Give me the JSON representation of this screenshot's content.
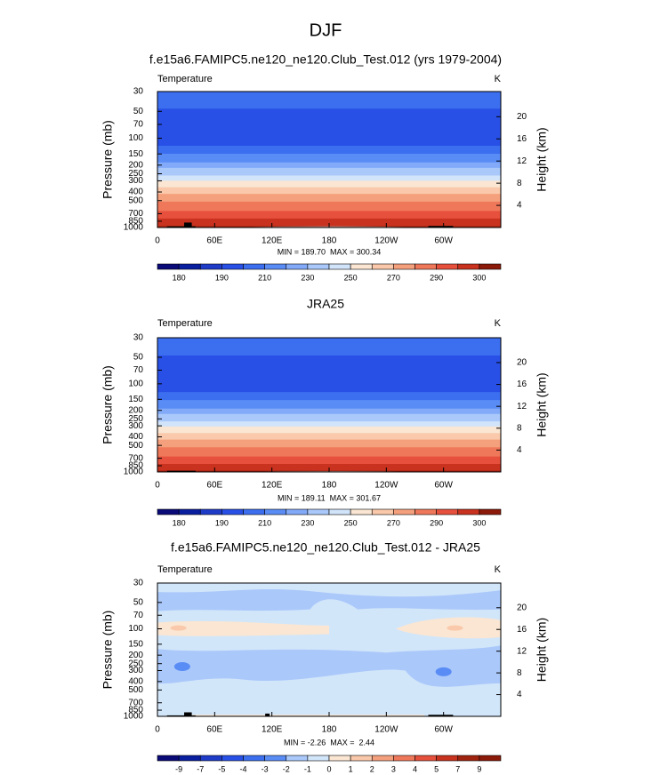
{
  "figure_title": "DJF",
  "chart_data": [
    {
      "type": "contour",
      "title": "f.e15a6.FAMIPC5.ne120_ne120.Club_Test.012 (yrs 1979-2004)",
      "left_label": "Temperature",
      "right_label": "K",
      "y_label": "Pressure (mb)",
      "y2_label": "Height (km)",
      "xlim": [
        0,
        360
      ],
      "xticks": [
        0,
        {
          "value": 60,
          "label": "60E"
        },
        {
          "value": 120,
          "label": "120E"
        },
        180,
        {
          "value": 240,
          "label": "120W"
        },
        {
          "value": 300,
          "label": "60W"
        }
      ],
      "ylim": [
        1000,
        30
      ],
      "log_y": true,
      "yticks": [
        30,
        50,
        70,
        100,
        150,
        200,
        250,
        300,
        400,
        500,
        700,
        850,
        1000
      ],
      "y2ticks": [
        4,
        8,
        12,
        16,
        20
      ],
      "stats": "MIN = 189.70  MAX = 300.34",
      "colorbar": {
        "labels": [
          180,
          190,
          210,
          230,
          250,
          270,
          290,
          300
        ],
        "colors": [
          "#0a0a78",
          "#0a1ea0",
          "#1e3cc8",
          "#2850e6",
          "#3c6ef0",
          "#5a8cf5",
          "#82aaf8",
          "#aac8fa",
          "#d2e4fa",
          "#fae6d2",
          "#fac8aa",
          "#f5a07d",
          "#f0785a",
          "#e6503c",
          "#c8321e",
          "#8c1a0a"
        ]
      }
    },
    {
      "type": "contour",
      "title": "JRA25",
      "left_label": "Temperature",
      "right_label": "K",
      "y_label": "Pressure (mb)",
      "y2_label": "Height (km)",
      "xlim": [
        0,
        360
      ],
      "xticks": [
        0,
        {
          "value": 60,
          "label": "60E"
        },
        {
          "value": 120,
          "label": "120E"
        },
        180,
        {
          "value": 240,
          "label": "120W"
        },
        {
          "value": 300,
          "label": "60W"
        }
      ],
      "ylim": [
        1000,
        30
      ],
      "log_y": true,
      "yticks": [
        30,
        50,
        70,
        100,
        150,
        200,
        250,
        300,
        400,
        500,
        700,
        850,
        1000
      ],
      "y2ticks": [
        4,
        8,
        12,
        16,
        20
      ],
      "stats": "MIN = 189.11  MAX = 301.67",
      "colorbar": {
        "labels": [
          180,
          190,
          210,
          230,
          250,
          270,
          290,
          300
        ],
        "colors": [
          "#0a0a78",
          "#0a1ea0",
          "#1e3cc8",
          "#2850e6",
          "#3c6ef0",
          "#5a8cf5",
          "#82aaf8",
          "#aac8fa",
          "#d2e4fa",
          "#fae6d2",
          "#fac8aa",
          "#f5a07d",
          "#f0785a",
          "#e6503c",
          "#c8321e",
          "#8c1a0a"
        ]
      }
    },
    {
      "type": "contour-diff",
      "title": "f.e15a6.FAMIPC5.ne120_ne120.Club_Test.012 - JRA25",
      "left_label": "Temperature",
      "right_label": "K",
      "y_label": "Pressure (mb)",
      "y2_label": "Height (km)",
      "xlim": [
        0,
        360
      ],
      "xticks": [
        0,
        {
          "value": 60,
          "label": "60E"
        },
        {
          "value": 120,
          "label": "120E"
        },
        180,
        {
          "value": 240,
          "label": "120W"
        },
        {
          "value": 300,
          "label": "60W"
        }
      ],
      "ylim": [
        1000,
        30
      ],
      "log_y": true,
      "yticks": [
        30,
        50,
        70,
        100,
        150,
        200,
        250,
        300,
        400,
        500,
        700,
        850,
        1000
      ],
      "y2ticks": [
        4,
        8,
        12,
        16,
        20
      ],
      "stats": "MIN = -2.26  MAX =  2.44",
      "colorbar": {
        "labels": [
          -9,
          -7,
          -5,
          -4,
          -3,
          -2,
          -1,
          0,
          1,
          2,
          3,
          4,
          5,
          7,
          9
        ],
        "colors": [
          "#0a0a78",
          "#0a1ea0",
          "#1e3cc8",
          "#2850e6",
          "#3c6ef0",
          "#5a8cf5",
          "#aac8fa",
          "#d2e6fa",
          "#fae6d2",
          "#fac8aa",
          "#f5a07d",
          "#f0785a",
          "#e6503c",
          "#c8321e",
          "#a0230f",
          "#8c1a0a"
        ]
      }
    }
  ]
}
